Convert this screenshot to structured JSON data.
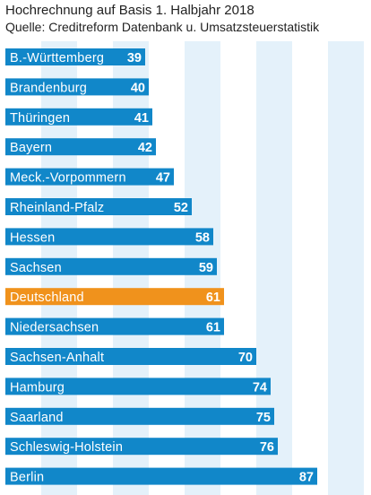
{
  "title": "Hochrechnung auf Basis 1. Halbjahr 2018",
  "subtitle": "Quelle: Creditreform Datenbank u. Umsatzsteuerstatistik",
  "colors": {
    "bar": "#1187c9",
    "highlight": "#f0921c",
    "band": "#e4f1fa"
  },
  "chart_data": {
    "type": "bar",
    "orientation": "horizontal",
    "categories": [
      "B.-Württemberg",
      "Brandenburg",
      "Thüringen",
      "Bayern",
      "Meck.-Vorpommern",
      "Rheinland-Pfalz",
      "Hessen",
      "Sachsen",
      "Deutschland",
      "Niedersachsen",
      "Sachsen-Anhalt",
      "Hamburg",
      "Saarland",
      "Schleswig-Holstein",
      "Berlin"
    ],
    "values": [
      39,
      40,
      41,
      42,
      47,
      52,
      58,
      59,
      61,
      61,
      70,
      74,
      75,
      76,
      87
    ],
    "highlight": [
      "Deutschland"
    ],
    "xlim": [
      0,
      100
    ],
    "grid": "vertical bands"
  }
}
